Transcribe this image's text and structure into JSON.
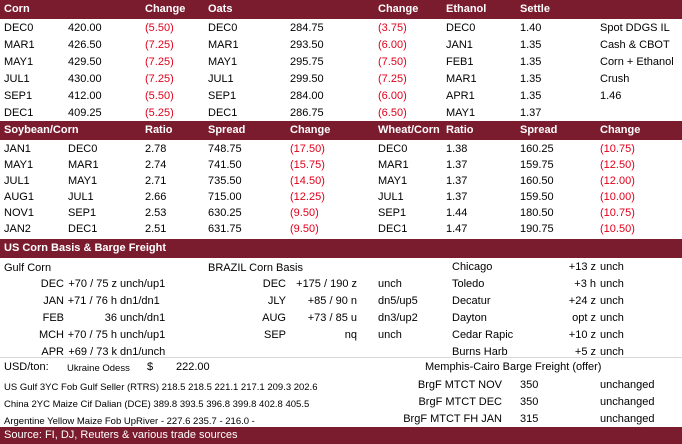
{
  "section1": {
    "headers": [
      "Corn",
      "Change",
      "Oats",
      "Change",
      "Ethanol",
      "Settle"
    ],
    "rows": [
      [
        "DEC0",
        "420.00",
        "(5.50)",
        "DEC0",
        "284.75",
        "(3.75)",
        "DEC0",
        "1.40",
        "Spot DDGS IL"
      ],
      [
        "MAR1",
        "426.50",
        "(7.25)",
        "MAR1",
        "293.50",
        "(6.00)",
        "JAN1",
        "1.35",
        "Cash & CBOT"
      ],
      [
        "MAY1",
        "429.50",
        "(7.25)",
        "MAY1",
        "295.75",
        "(7.50)",
        "FEB1",
        "1.35",
        "Corn + Ethanol"
      ],
      [
        "JUL1",
        "430.00",
        "(7.25)",
        "JUL1",
        "299.50",
        "(7.25)",
        "MAR1",
        "1.35",
        "Crush"
      ],
      [
        "SEP1",
        "412.00",
        "(5.50)",
        "SEP1",
        "284.00",
        "(6.00)",
        "APR1",
        "1.35",
        "1.46"
      ],
      [
        "DEC1",
        "409.25",
        "(5.25)",
        "DEC1",
        "286.75",
        "(6.50)",
        "MAY1",
        "1.37",
        ""
      ]
    ]
  },
  "section2": {
    "headers": [
      "Soybean/Corn",
      "Ratio",
      "Spread",
      "Change",
      "Wheat/Corn",
      "Ratio",
      "Spread",
      "Change"
    ],
    "rows": [
      [
        "JAN1",
        "DEC0",
        "2.78",
        "748.75",
        "(17.50)",
        "DEC0",
        "1.38",
        "160.25",
        "(10.75)"
      ],
      [
        "MAY1",
        "MAR1",
        "2.74",
        "741.50",
        "(15.75)",
        "MAR1",
        "1.37",
        "159.75",
        "(12.50)"
      ],
      [
        "JUL1",
        "MAY1",
        "2.71",
        "735.50",
        "(14.50)",
        "MAY1",
        "1.37",
        "160.50",
        "(12.00)"
      ],
      [
        "AUG1",
        "JUL1",
        "2.66",
        "715.00",
        "(12.25)",
        "JUL1",
        "1.37",
        "159.50",
        "(10.00)"
      ],
      [
        "NOV1",
        "SEP1",
        "2.53",
        "630.25",
        "(9.50)",
        "SEP1",
        "1.44",
        "180.50",
        "(10.75)"
      ],
      [
        "JAN2",
        "DEC1",
        "2.51",
        "631.75",
        "(9.50)",
        "DEC1",
        "1.47",
        "190.75",
        "(10.50)"
      ]
    ]
  },
  "section3": {
    "title": "US Corn Basis & Barge Freight",
    "gulf_label": "Gulf Corn",
    "brazil_label": "BRAZIL Corn Basis",
    "gulf": [
      [
        "DEC",
        "+70 / 75 z",
        "unch/up1"
      ],
      [
        "JAN",
        "+71 / 76 h",
        "dn1/dn1"
      ],
      [
        "FEB",
        "36",
        "unch/dn1"
      ],
      [
        "MCH",
        "+70 / 75 h",
        "unch/up1"
      ],
      [
        "APR",
        "+69 / 73 k",
        "dn1/unch"
      ]
    ],
    "brazil": [
      [
        "DEC",
        "+175 / 190 z",
        "unch"
      ],
      [
        "JLY",
        "+85 / 90 n",
        "dn5/up5"
      ],
      [
        "AUG",
        "+73 / 85 u",
        "dn3/up2"
      ],
      [
        "SEP",
        "nq",
        "unch"
      ]
    ],
    "cities": [
      [
        "Chicago",
        "+13 z",
        "unch"
      ],
      [
        "Toledo",
        "+3 h",
        "unch"
      ],
      [
        "Decatur",
        "+24 z",
        "unch"
      ],
      [
        "Dayton",
        "opt z",
        "unch"
      ],
      [
        "Cedar Rapic",
        "+10 z",
        "unch"
      ],
      [
        "Burns Harb",
        "+5 z",
        "unch"
      ]
    ]
  },
  "section4": {
    "usd_label": "USD/ton:",
    "ukraine_label": "Ukraine Odess",
    "ukraine_currency": "$",
    "ukraine_value": "222.00",
    "barge_title": "Memphis-Cairo Barge Freight (offer)",
    "us_gulf": "US Gulf  3YC Fob Gulf Seller (RTRS) 218.5  218.5  221.1  217.1  209.3  202.6",
    "china": "China  2YC Maize Cif Dalian (DCE) 389.8  393.5  396.8  399.8  402.8  405.5",
    "argentine": "Argentine  Yellow Maize Fob UpRiver   -   227.6  235.7   -   216.0   -",
    "barge": [
      [
        "BrgF MTCT NOV",
        "350",
        "unchanged"
      ],
      [
        "BrgF MTCT DEC",
        "350",
        "unchanged"
      ],
      [
        "BrgF MTCT FH JAN",
        "315",
        "unchanged"
      ]
    ]
  },
  "source": "Source: FI, DJ, Reuters & various trade sources"
}
